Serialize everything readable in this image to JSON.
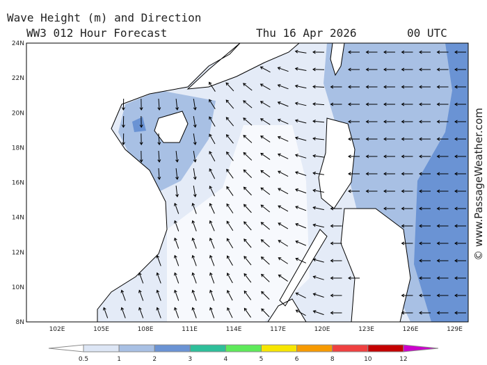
{
  "header": {
    "title": "Wave Height (m) and Direction",
    "model": "WW3 012 Hour Forecast",
    "date": "Thu 16 Apr 2026",
    "time": "00 UTC"
  },
  "map": {
    "lat_labels": [
      "24N",
      "22N",
      "20N",
      "18N",
      "16N",
      "14N",
      "12N",
      "10N",
      "8N"
    ],
    "lon_labels": [
      "102E",
      "105E",
      "108E",
      "111E",
      "114E",
      "117E",
      "120E",
      "123E",
      "126E",
      "129E"
    ]
  },
  "legend": {
    "ticks": [
      0.5,
      1,
      2,
      3,
      4,
      5,
      6,
      8,
      10,
      12
    ],
    "colors": [
      "#ffffff",
      "#dde6f5",
      "#a8c0e4",
      "#6a93d4",
      "#2ebf9a",
      "#5eea5a",
      "#f7e600",
      "#f79a00",
      "#ef4040",
      "#c40000",
      "#cc00cc"
    ]
  },
  "credit": "© www.PassageWeather.com"
}
